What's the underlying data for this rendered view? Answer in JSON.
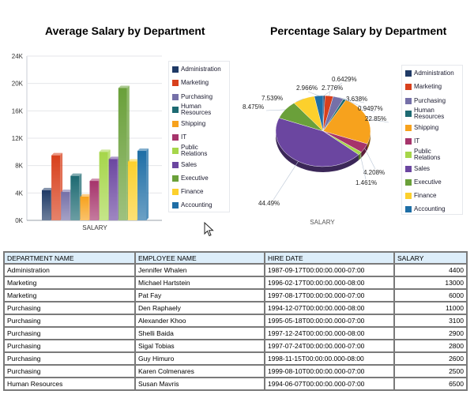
{
  "chart_data": [
    {
      "type": "bar",
      "title": "Average Salary by Department",
      "xlabel": "SALARY",
      "ylabel": "",
      "categories": [
        "SALARY"
      ],
      "ylim": [
        0,
        24000
      ],
      "yticks": [
        0,
        4000,
        8000,
        12000,
        16000,
        20000,
        24000
      ],
      "ytick_labels": [
        "0K",
        "4K",
        "8K",
        "12K",
        "16K",
        "20K",
        "24K"
      ],
      "grid": true,
      "legend_position": "right",
      "series": [
        {
          "name": "Administration",
          "values": [
            4400
          ],
          "color": "#1f3a66"
        },
        {
          "name": "Marketing",
          "values": [
            9500
          ],
          "color": "#d8401c"
        },
        {
          "name": "Purchasing",
          "values": [
            4150
          ],
          "color": "#7570a8"
        },
        {
          "name": "Human Resources",
          "values": [
            6500
          ],
          "color": "#1d6a72"
        },
        {
          "name": "Shipping",
          "values": [
            3476
          ],
          "color": "#f7a21d"
        },
        {
          "name": "IT",
          "values": [
            5760
          ],
          "color": "#a6346b"
        },
        {
          "name": "Public Relations",
          "values": [
            10000
          ],
          "color": "#a6d64a"
        },
        {
          "name": "Sales",
          "values": [
            8956
          ],
          "color": "#6b46a0"
        },
        {
          "name": "Executive",
          "values": [
            19333
          ],
          "color": "#6aa03a"
        },
        {
          "name": "Finance",
          "values": [
            8601
          ],
          "color": "#fcd02c"
        },
        {
          "name": "Accounting",
          "values": [
            10150
          ],
          "color": "#1e6ea6"
        }
      ]
    },
    {
      "type": "pie",
      "title": "Percentage Salary by Department",
      "xlabel": "SALARY",
      "legend_position": "right",
      "slices": [
        {
          "name": "Administration",
          "value": 0.6429,
          "label": "0.6429%",
          "color": "#1f3a66"
        },
        {
          "name": "Marketing",
          "value": 2.776,
          "label": "2.776%",
          "color": "#d8401c"
        },
        {
          "name": "Purchasing",
          "value": 3.638,
          "label": "3.638%",
          "color": "#7570a8"
        },
        {
          "name": "Human Resources",
          "value": 0.9497,
          "label": "0.9497%",
          "color": "#1d6a72"
        },
        {
          "name": "Shipping",
          "value": 22.85,
          "label": "22.85%",
          "color": "#f7a21d"
        },
        {
          "name": "IT",
          "value": 4.208,
          "label": "4.208%",
          "color": "#a6346b"
        },
        {
          "name": "Public Relations",
          "value": 1.461,
          "label": "1.461%",
          "color": "#a6d64a"
        },
        {
          "name": "Sales",
          "value": 44.49,
          "label": "44.49%",
          "color": "#6b46a0"
        },
        {
          "name": "Executive",
          "value": 8.475,
          "label": "8.475%",
          "color": "#6aa03a"
        },
        {
          "name": "Finance",
          "value": 7.539,
          "label": "7.539%",
          "color": "#fcd02c"
        },
        {
          "name": "Accounting",
          "value": 2.966,
          "label": "2.966%",
          "color": "#1e6ea6"
        }
      ]
    }
  ],
  "legend_labels": [
    "Administration",
    "Marketing",
    "Purchasing",
    "Human\nResources",
    "Shipping",
    "IT",
    "Public\nRelations",
    "Sales",
    "Executive",
    "Finance",
    "Accounting"
  ],
  "table": {
    "headers": [
      "DEPARTMENT NAME",
      "EMPLOYEE NAME",
      "HIRE DATE",
      "SALARY"
    ],
    "rows": [
      [
        "Administration",
        "Jennifer Whalen",
        "1987-09-17T00:00:00.000-07:00",
        "4400"
      ],
      [
        "Marketing",
        "Michael Hartstein",
        "1996-02-17T00:00:00.000-08:00",
        "13000"
      ],
      [
        "Marketing",
        "Pat Fay",
        "1997-08-17T00:00:00.000-07:00",
        "6000"
      ],
      [
        "Purchasing",
        "Den Raphaely",
        "1994-12-07T00:00:00.000-08:00",
        "11000"
      ],
      [
        "Purchasing",
        "Alexander Khoo",
        "1995-05-18T00:00:00.000-07:00",
        "3100"
      ],
      [
        "Purchasing",
        "Shelli Baida",
        "1997-12-24T00:00:00.000-08:00",
        "2900"
      ],
      [
        "Purchasing",
        "Sigal Tobias",
        "1997-07-24T00:00:00.000-07:00",
        "2800"
      ],
      [
        "Purchasing",
        "Guy Himuro",
        "1998-11-15T00:00:00.000-08:00",
        "2600"
      ],
      [
        "Purchasing",
        "Karen Colmenares",
        "1999-08-10T00:00:00.000-07:00",
        "2500"
      ],
      [
        "Human Resources",
        "Susan Mavris",
        "1994-06-07T00:00:00.000-07:00",
        "6500"
      ]
    ]
  },
  "icons": {
    "cursor": "mouse-pointer-icon"
  }
}
